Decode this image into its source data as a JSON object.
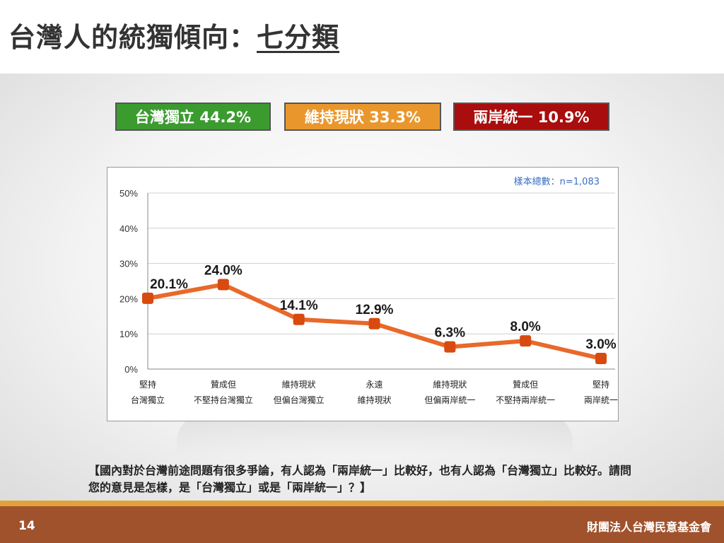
{
  "slide": {
    "title_main": "台灣人的統獨傾向：",
    "title_sub": "七分類",
    "page_number": "14",
    "organization": "財團法人台灣民意基金會",
    "question": "【國內對於台灣前途問題有很多爭論，有人認為「兩岸統一」比較好，也有人認為「台灣獨立」比較好。請問您的意見是怎樣，是「台灣獨立」或是「兩岸統一」？】"
  },
  "summary_boxes": [
    {
      "label": "台灣獨立 44.2%",
      "color": "#3b9b2f"
    },
    {
      "label": "維持現狀 33.3%",
      "color": "#e9972d"
    },
    {
      "label": "兩岸統一 10.9%",
      "color": "#a90d0d"
    }
  ],
  "chart_data": {
    "type": "line",
    "title": "",
    "sample_note": "樣本總數：n=1,083",
    "categories": [
      [
        "堅持",
        "台灣獨立"
      ],
      [
        "贊成但",
        "不堅持台灣獨立"
      ],
      [
        "維持現狀",
        "但偏台灣獨立"
      ],
      [
        "永遠",
        "維持現狀"
      ],
      [
        "維持現狀",
        "但偏兩岸統一"
      ],
      [
        "贊成但",
        "不堅持兩岸統一"
      ],
      [
        "堅持",
        "兩岸統一"
      ]
    ],
    "values": [
      20.1,
      24.0,
      14.1,
      12.9,
      6.3,
      8.0,
      3.0
    ],
    "data_labels": [
      "20.1%",
      "24.0%",
      "14.1%",
      "12.9%",
      "6.3%",
      "8.0%",
      "3.0%"
    ],
    "y_ticks": [
      "0%",
      "10%",
      "20%",
      "30%",
      "40%",
      "50%"
    ],
    "ylim": [
      0,
      50
    ],
    "grid": true,
    "line_color": "#e8692a",
    "marker_color": "#d84a10"
  }
}
